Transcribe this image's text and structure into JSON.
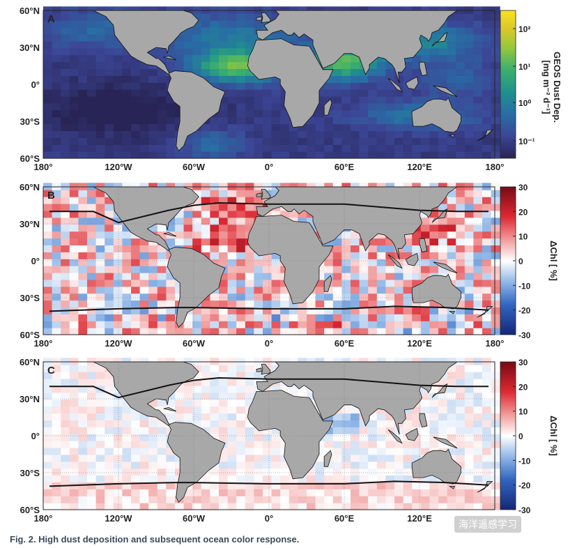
{
  "figure": {
    "caption": "Fig. 2. High dust deposition and subsequent ocean color response.",
    "watermark": "海洋遥感学习",
    "land_color": "#a8a8a8",
    "ocean_colors": {
      "viridis_low": "#2b2a5e",
      "viridis_high": "#f7e21e"
    }
  },
  "chart_data": [
    {
      "panel": "A",
      "type": "heatmap",
      "title": "",
      "xlabel": "",
      "ylabel": "",
      "x_range": [
        -180,
        180
      ],
      "y_range": [
        -60,
        60
      ],
      "x_ticks": [
        "180°",
        "120°W",
        "60°W",
        "0°",
        "60°E",
        "120°E",
        "180°"
      ],
      "y_ticks": [
        "60°N",
        "30°N",
        "0°",
        "30°S",
        "60°S"
      ],
      "colorbar": {
        "title": "GEOS Dust Dep.",
        "units": "[mg m⁻² d⁻¹]",
        "scale": "log",
        "range": [
          0.03,
          300
        ],
        "ticks": [
          "10⁻¹",
          "10⁰",
          "10¹",
          "10²"
        ]
      },
      "description_values": "log10 dust deposition, highest over tropical North Atlantic and Arabian Sea"
    },
    {
      "panel": "B",
      "type": "heatmap",
      "x_range": [
        -180,
        180
      ],
      "y_range": [
        -60,
        60
      ],
      "x_ticks": [
        "180°",
        "120°W",
        "60°W",
        "0°",
        "60°E",
        "120°E",
        "180°"
      ],
      "y_ticks": [
        "60°N",
        "30°N",
        "0°",
        "30°S",
        "60°S"
      ],
      "colorbar": {
        "title": "ΔChl [ %]",
        "range": [
          -30,
          30
        ],
        "ticks": [
          "30",
          "20",
          "10",
          "0",
          "-10",
          "-20",
          "-30"
        ]
      },
      "boundary_lines": [
        {
          "name": "north",
          "lon": [
            -175,
            -140,
            -120,
            -80,
            -60,
            -40,
            0,
            60,
            120,
            150,
            175
          ],
          "lat": [
            40,
            40,
            31,
            41,
            45,
            47,
            46,
            46,
            41,
            40,
            40
          ]
        },
        {
          "name": "south",
          "lon": [
            -175,
            -120,
            -75,
            -60,
            0,
            60,
            100,
            140,
            175
          ],
          "lat": [
            -41,
            -39,
            -38,
            -38,
            -39,
            -39,
            -37,
            -38,
            -40
          ]
        }
      ]
    },
    {
      "panel": "C",
      "type": "heatmap",
      "x_range": [
        -180,
        180
      ],
      "y_range": [
        -60,
        60
      ],
      "x_ticks": [
        "180°",
        "120°W",
        "60°W",
        "0°",
        "60°E",
        "120°E",
        "180°"
      ],
      "y_ticks": [
        "60°N",
        "30°N",
        "0°",
        "30°S",
        "60°S"
      ],
      "colorbar": {
        "title": "ΔChl [ %]",
        "range": [
          -30,
          30
        ],
        "ticks": [
          "30",
          "20",
          "10",
          "0",
          "-10",
          "-20",
          "-30"
        ]
      },
      "boundary_lines": [
        {
          "name": "north",
          "lon": [
            -175,
            -140,
            -120,
            -80,
            -60,
            -40,
            0,
            60,
            120,
            150,
            175
          ],
          "lat": [
            40,
            40,
            31,
            41,
            45,
            47,
            46,
            46,
            41,
            40,
            40
          ]
        },
        {
          "name": "south",
          "lon": [
            -175,
            -120,
            -75,
            -60,
            0,
            60,
            100,
            140,
            175
          ],
          "lat": [
            -41,
            -39,
            -38,
            -38,
            -39,
            -39,
            -37,
            -38,
            -40
          ]
        }
      ]
    }
  ]
}
